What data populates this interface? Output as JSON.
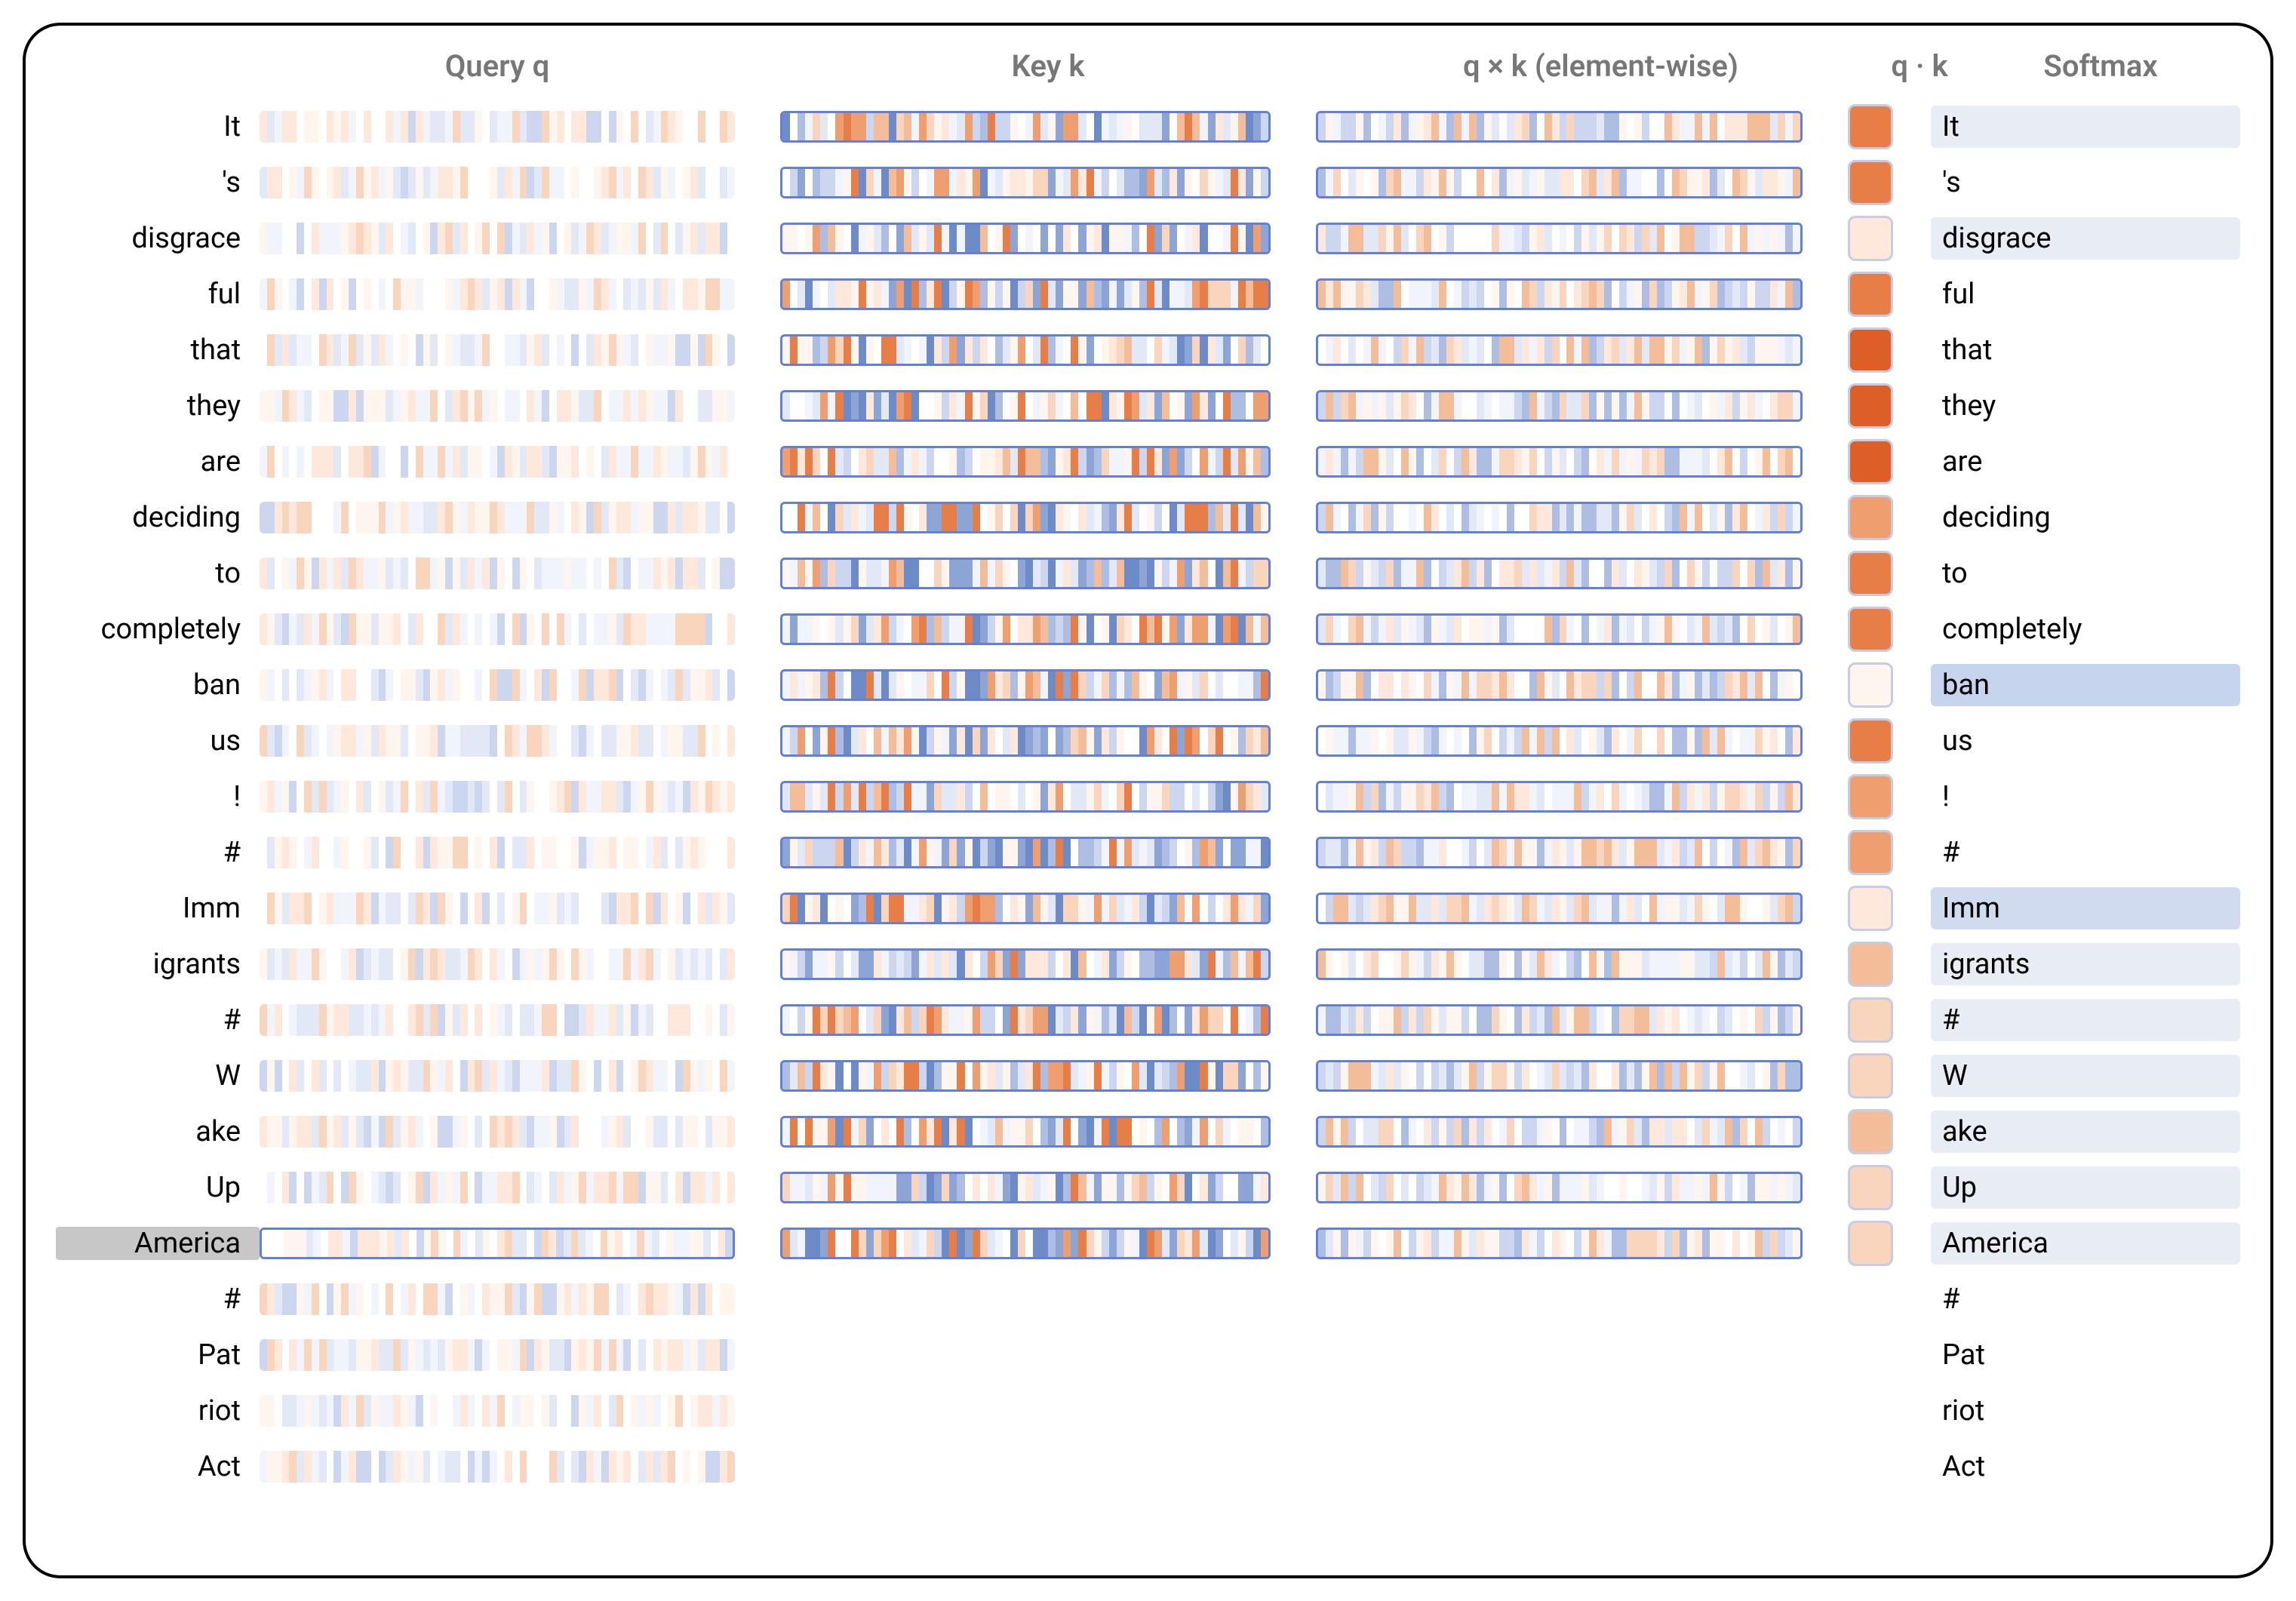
{
  "headers": {
    "query": "Query q",
    "key": "Key k",
    "qxk": "q × k (element-wise)",
    "dot": "q · k",
    "softmax": "Softmax"
  },
  "selected_query_index": 20,
  "colors": {
    "header_text": "#777777",
    "token_text": "#000000",
    "border_main": "#000000",
    "selected_bg": "#c7c7c7",
    "strip_border": "#637fd8",
    "softmax_blue_light": "#e8ecf5",
    "softmax_blue_med": "#d0dbef",
    "softmax_blue": "#c6d4ed"
  },
  "palette_pos": [
    "#fff5ef",
    "#fde8db",
    "#f9d5bd",
    "#f4bd99",
    "#ef9e6f",
    "#e77e48",
    "#dd5f26"
  ],
  "palette_neg": [
    "#f1f4fb",
    "#e2e8f6",
    "#ccd6ee",
    "#aebee2",
    "#8da5d5",
    "#6c8bc7",
    "#4c6fb7"
  ],
  "tokens": [
    {
      "label": "It",
      "dot": 0.85,
      "softmax_bg": "#e8ecf5"
    },
    {
      "label": "'s",
      "dot": 0.75,
      "softmax_bg": "#ffffff"
    },
    {
      "label": "disgrace",
      "dot": 0.2,
      "softmax_bg": "#e8ecf5"
    },
    {
      "label": "ful",
      "dot": 0.72,
      "softmax_bg": "#ffffff"
    },
    {
      "label": "that",
      "dot": 0.9,
      "softmax_bg": "#ffffff"
    },
    {
      "label": "they",
      "dot": 0.88,
      "softmax_bg": "#ffffff"
    },
    {
      "label": "are",
      "dot": 0.95,
      "softmax_bg": "#ffffff"
    },
    {
      "label": "deciding",
      "dot": 0.6,
      "softmax_bg": "#ffffff"
    },
    {
      "label": "to",
      "dot": 0.78,
      "softmax_bg": "#ffffff"
    },
    {
      "label": "completely",
      "dot": 0.8,
      "softmax_bg": "#ffffff"
    },
    {
      "label": "ban",
      "dot": 0.08,
      "softmax_bg": "#c6d4ed"
    },
    {
      "label": "us",
      "dot": 0.82,
      "softmax_bg": "#ffffff"
    },
    {
      "label": "!",
      "dot": 0.7,
      "softmax_bg": "#ffffff"
    },
    {
      "label": "#",
      "dot": 0.65,
      "softmax_bg": "#ffffff"
    },
    {
      "label": "Imm",
      "dot": 0.15,
      "softmax_bg": "#d0dbef"
    },
    {
      "label": "igrants",
      "dot": 0.45,
      "softmax_bg": "#e8ecf5"
    },
    {
      "label": "#",
      "dot": 0.4,
      "softmax_bg": "#e8ecf5"
    },
    {
      "label": "W",
      "dot": 0.42,
      "softmax_bg": "#e8ecf5"
    },
    {
      "label": "ake",
      "dot": 0.48,
      "softmax_bg": "#e8ecf5"
    },
    {
      "label": "Up",
      "dot": 0.38,
      "softmax_bg": "#e8ecf5"
    },
    {
      "label": "America",
      "dot": 0.35,
      "softmax_bg": "#e8ecf5"
    },
    {
      "label": "#",
      "dot": null,
      "softmax_bg": "#ffffff"
    },
    {
      "label": "Pat",
      "dot": null,
      "softmax_bg": "#ffffff"
    },
    {
      "label": "riot",
      "dot": null,
      "softmax_bg": "#ffffff"
    },
    {
      "label": "Act",
      "dot": null,
      "softmax_bg": "#ffffff"
    }
  ],
  "strip_count": 64,
  "query_intensity": 0.35,
  "key_intensity": 0.85,
  "qxk_intensity": 0.55
}
